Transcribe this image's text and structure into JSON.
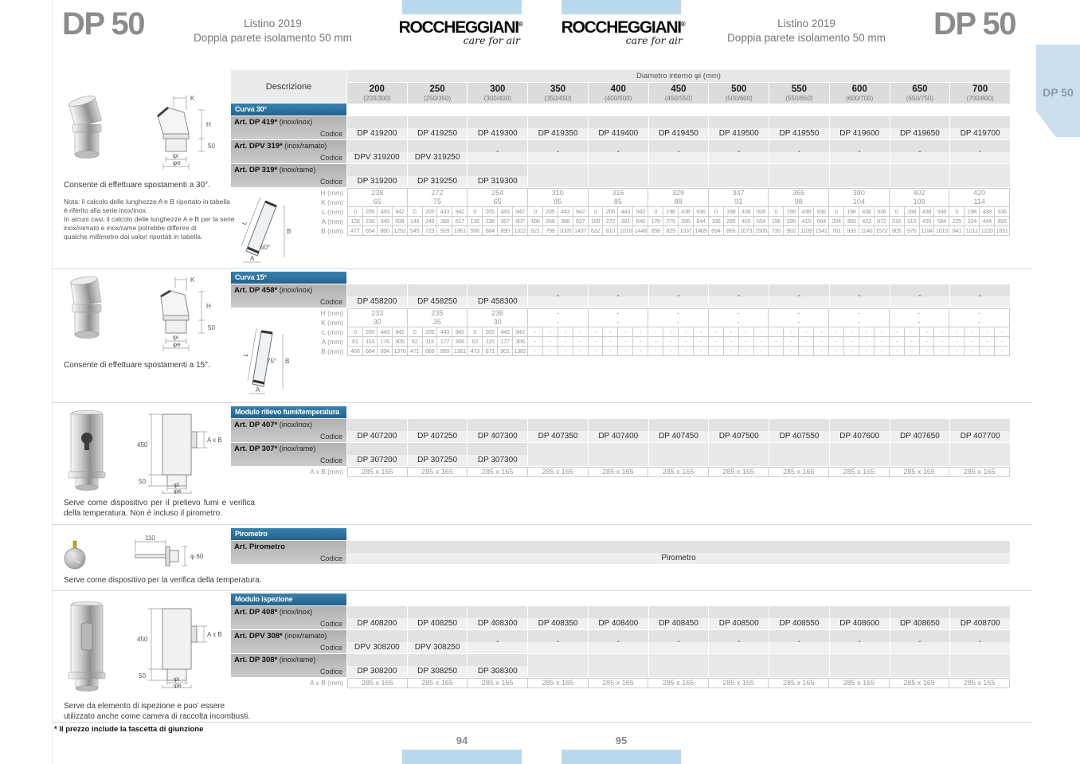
{
  "page": {
    "left_header": {
      "title": "DP 50",
      "line1": "Listino 2019",
      "line2": "Doppia parete isolamento 50 mm"
    },
    "right_header": {
      "title": "DP 50",
      "line1": "Listino 2019",
      "line2": "Doppia parete isolamento 50 mm"
    },
    "brand": {
      "name": "ROCCHEGGIANI",
      "registered": "®",
      "tagline": "care for air"
    },
    "side_tab": "DP 50",
    "footnote": "* Il prezzo include la fascetta di giunzione",
    "page_number_left": "94",
    "page_number_right": "95",
    "accent_blue": "#b9d8eb",
    "section_header_blue": "#2e76a5"
  },
  "table": {
    "descrizione_label": "Descrizione",
    "diametro_label": "Diametro interno φi (mm)",
    "codice_label": "Codice",
    "columns": [
      {
        "size": "200",
        "range": "(200/300)"
      },
      {
        "size": "250",
        "range": "(250/350)"
      },
      {
        "size": "300",
        "range": "(300/400)"
      },
      {
        "size": "350",
        "range": "(350/450)"
      },
      {
        "size": "400",
        "range": "(400/500)"
      },
      {
        "size": "450",
        "range": "(450/550)"
      },
      {
        "size": "500",
        "range": "(500/600)"
      },
      {
        "size": "550",
        "range": "(550/650)"
      },
      {
        "size": "600",
        "range": "(600/700)"
      },
      {
        "size": "650",
        "range": "(650/750)"
      },
      {
        "size": "700",
        "range": "(700/800)"
      }
    ],
    "sections": [
      {
        "id": "curva30",
        "title": "Curva 30°",
        "products": [
          {
            "name": "Art. DP 419*",
            "material": "(inox/inox)",
            "codes": [
              "DP 419200",
              "DP 419250",
              "DP 419300",
              "DP 419350",
              "DP 419400",
              "DP 419450",
              "DP 419500",
              "DP 419550",
              "DP 419600",
              "DP 419650",
              "DP 419700"
            ]
          },
          {
            "name": "Art. DPV 319*",
            "material": "(inox/ramato)",
            "codes": [
              "DPV 319200",
              "DPV 319250",
              "-",
              "-",
              "-",
              "-",
              "-",
              "-",
              "-",
              "-",
              "-"
            ]
          },
          {
            "name": "Art. DP 319*",
            "material": "(inox/rame)",
            "codes": [
              "DP 319200",
              "DP 319250",
              "DP 319300",
              "",
              "",
              "",
              "",
              "",
              "",
              "",
              ""
            ]
          }
        ],
        "dim_rows": [
          {
            "label": "H (mm)",
            "type": "single",
            "values": [
              "238",
              "272",
              "254",
              "310",
              "316",
              "329",
              "347",
              "365",
              "380",
              "402",
              "420"
            ]
          },
          {
            "label": "K (mm)",
            "type": "single",
            "values": [
              "65",
              "75",
              "65",
              "85",
              "85",
              "88",
              "93",
              "98",
              "104",
              "109",
              "114"
            ]
          },
          {
            "label": "L (mm)",
            "type": "quad",
            "values": [
              [
                "0",
                "205",
                "443",
                "942"
              ],
              [
                "0",
                "205",
                "443",
                "942"
              ],
              [
                "0",
                "205",
                "443",
                "942"
              ],
              [
                "0",
                "205",
                "443",
                "942"
              ],
              [
                "0",
                "205",
                "443",
                "942"
              ],
              [
                "0",
                "198",
                "438",
                "936"
              ],
              [
                "0",
                "198",
                "438",
                "936"
              ],
              [
                "0",
                "198",
                "438",
                "936"
              ],
              [
                "0",
                "198",
                "438",
                "936"
              ],
              [
                "0",
                "198",
                "438",
                "936"
              ],
              [
                "0",
                "198",
                "438",
                "936"
              ]
            ]
          },
          {
            "label": "A (mm)",
            "type": "quad",
            "values": [
              [
                "128",
                "230",
                "349",
                "599"
              ],
              [
                "146",
                "249",
                "368",
                "617"
              ],
              [
                "136",
                "238",
                "357",
                "607"
              ],
              [
                "166",
                "269",
                "388",
                "637"
              ],
              [
                "169",
                "272",
                "391",
                "640"
              ],
              [
                "176",
                "275",
                "395",
                "644"
              ],
              [
                "186",
                "285",
                "405",
                "654"
              ],
              [
                "196",
                "295",
                "415",
                "664"
              ],
              [
                "204",
                "303",
                "423",
                "672"
              ],
              [
                "216",
                "315",
                "435",
                "684"
              ],
              [
                "225",
                "324",
                "444",
                "693"
              ]
            ]
          },
          {
            "label": "B (mm)",
            "type": "quad",
            "values": [
              [
                "477",
                "654",
                "860",
                "1292"
              ],
              [
                "545",
                "723",
                "929",
                "1361"
              ],
              [
                "506",
                "684",
                "890",
                "1322"
              ],
              [
                "621",
                "799",
                "1005",
                "1437"
              ],
              [
                "632",
                "810",
                "1016",
                "1448"
              ],
              [
                "658",
                "829",
                "1037",
                "1469"
              ],
              [
                "694",
                "865",
                "1073",
                "1505"
              ],
              [
                "730",
                "902",
                "1109",
                "1541"
              ],
              [
                "761",
                "933",
                "1140",
                "1572"
              ],
              [
                "805",
                "976",
                "1184",
                "1615"
              ],
              [
                "841",
                "1012",
                "1220",
                "1651"
              ]
            ]
          }
        ]
      },
      {
        "id": "curva15",
        "title": "Curva 15°",
        "products": [
          {
            "name": "Art. DP 458*",
            "material": "(inox/inox)",
            "codes": [
              "DP 458200",
              "DP 458250",
              "DP 458300",
              "-",
              "-",
              "-",
              "-",
              "-",
              "-",
              "-",
              "-"
            ]
          }
        ],
        "dim_rows": [
          {
            "label": "H (mm)",
            "type": "single",
            "values": [
              "233",
              "235",
              "236",
              "-",
              "-",
              "-",
              "-",
              "-",
              "-",
              "-",
              "-"
            ]
          },
          {
            "label": "K (mm)",
            "type": "single",
            "values": [
              "30",
              "35",
              "30",
              "-",
              "-",
              "-",
              "-",
              "-",
              "-",
              "-",
              "-"
            ]
          },
          {
            "label": "L (mm)",
            "type": "quad",
            "values": [
              [
                "0",
                "205",
                "443",
                "942"
              ],
              [
                "0",
                "205",
                "443",
                "942"
              ],
              [
                "0",
                "205",
                "443",
                "942"
              ],
              [
                "-",
                "-",
                "-",
                "-"
              ],
              [
                "-",
                "-",
                "-",
                "-"
              ],
              [
                "-",
                "-",
                "-",
                "-"
              ],
              [
                "-",
                "-",
                "-",
                "-"
              ],
              [
                "-",
                "-",
                "-",
                "-"
              ],
              [
                "-",
                "-",
                "-",
                "-"
              ],
              [
                "-",
                "-",
                "-",
                "-"
              ],
              [
                "-",
                "-",
                "-",
                "-"
              ]
            ]
          },
          {
            "label": "A (mm)",
            "type": "quad",
            "values": [
              [
                "61",
                "114",
                "176",
                "305"
              ],
              [
                "62",
                "115",
                "177",
                "306"
              ],
              [
                "62",
                "115",
                "177",
                "306"
              ],
              [
                "-",
                "-",
                "-",
                "-"
              ],
              [
                "-",
                "-",
                "-",
                "-"
              ],
              [
                "-",
                "-",
                "-",
                "-"
              ],
              [
                "-",
                "-",
                "-",
                "-"
              ],
              [
                "-",
                "-",
                "-",
                "-"
              ],
              [
                "-",
                "-",
                "-",
                "-"
              ],
              [
                "-",
                "-",
                "-",
                "-"
              ],
              [
                "-",
                "-",
                "-",
                "-"
              ]
            ]
          },
          {
            "label": "B (mm)",
            "type": "quad",
            "values": [
              [
                "466",
                "664",
                "894",
                "1376"
              ],
              [
                "471",
                "669",
                "899",
                "1381"
              ],
              [
                "473",
                "671",
                "901",
                "1383"
              ],
              [
                "-",
                "-",
                "-",
                "-"
              ],
              [
                "-",
                "-",
                "-",
                "-"
              ],
              [
                "-",
                "-",
                "-",
                "-"
              ],
              [
                "-",
                "-",
                "-",
                "-"
              ],
              [
                "-",
                "-",
                "-",
                "-"
              ],
              [
                "-",
                "-",
                "-",
                "-"
              ],
              [
                "-",
                "-",
                "-",
                "-"
              ],
              [
                "-",
                "-",
                "-",
                "-"
              ]
            ]
          }
        ]
      },
      {
        "id": "rilievo",
        "title": "Modulo rilievo fumi/temperatura",
        "products": [
          {
            "name": "Art. DP 407*",
            "material": "(inox/inox)",
            "codes": [
              "DP 407200",
              "DP 407250",
              "DP 407300",
              "DP 407350",
              "DP 407400",
              "DP 407450",
              "DP 407500",
              "DP 407550",
              "DP 407600",
              "DP 407650",
              "DP 407700"
            ]
          },
          {
            "name": "Art. DP 307*",
            "material": "(inox/rame)",
            "codes": [
              "DP 307200",
              "DP 307250",
              "DP 307300",
              "",
              "",
              "",
              "",
              "",
              "",
              "",
              ""
            ]
          }
        ],
        "dim_rows": [
          {
            "label": "A x B (mm)",
            "type": "single",
            "values": [
              "285 x 165",
              "285 x 165",
              "285 x 165",
              "285 x 165",
              "285 x 165",
              "285 x 165",
              "285 x 165",
              "285 x 165",
              "285 x 165",
              "285 x 165",
              "285 x 165"
            ]
          }
        ]
      },
      {
        "id": "pirometro",
        "title": "Pirometro",
        "products": [
          {
            "name": "Art. Pirometro",
            "material": "",
            "span_value": "Pirometro"
          }
        ],
        "dim_rows": []
      },
      {
        "id": "ispezione",
        "title": "Modulo ispezione",
        "products": [
          {
            "name": "Art. DP 408*",
            "material": "(inox/inox)",
            "codes": [
              "DP 408200",
              "DP 408250",
              "DP 408300",
              "DP 408350",
              "DP 408400",
              "DP 408450",
              "DP 408500",
              "DP 408550",
              "DP 408600",
              "DP 408650",
              "DP 408700"
            ]
          },
          {
            "name": "Art. DPV 308*",
            "material": "(inox/ramato)",
            "codes": [
              "DPV 308200",
              "DPV 308250",
              "-",
              "-",
              "-",
              "-",
              "-",
              "-",
              "-",
              "-",
              "-"
            ]
          },
          {
            "name": "Art. DP 308*",
            "material": "(inox/rame)",
            "codes": [
              "DP 308200",
              "DP 308250",
              "DP 308300",
              "",
              "",
              "",
              "",
              "",
              "",
              "",
              ""
            ]
          }
        ],
        "dim_rows": [
          {
            "label": "A x B (mm)",
            "type": "single",
            "values": [
              "285 x 165",
              "285 x 165",
              "285 x 165",
              "285 x 165",
              "285 x 165",
              "285 x 165",
              "285 x 165",
              "285 x 165",
              "285 x 165",
              "285 x 165",
              "285 x 165"
            ]
          }
        ]
      }
    ]
  },
  "panels": [
    {
      "description": "Consente di effettuare spostamenti a 30°.",
      "note": "Nota: il calcolo delle lunghezze A e B riportato in tabella\nè riferito alla serie inox/inox.\nIn alcuni casi, il calcolo delle lunghezze A e B per la serie\ninox/ramato e inox/rame potrebbe differire di\nqualche millimetro dai valori riportati in tabella.",
      "labels": {
        "k": "K",
        "h": "H",
        "phi_i": "φi",
        "phi_e": "φe",
        "depth": "50"
      }
    },
    {
      "description": "Consente di effettuare spostamenti a 15°.",
      "labels": {
        "k": "K",
        "h": "H",
        "phi_i": "φi",
        "phi_e": "φe",
        "depth": "50"
      }
    },
    {
      "description": "Serve come dispositivo per il prelievo fumi e verifica della temperatura. Non è incluso il pirometro.",
      "labels": {
        "height": "450",
        "port": "A x B",
        "depth": "50",
        "phi_i": "φi",
        "phi_e": "φe"
      }
    },
    {
      "description": "Serve come dispositivo per la verifica della temperatura.",
      "labels": {
        "length": "110",
        "diameter": "φ 60"
      }
    },
    {
      "description": "Serve da elemento di ispezione e puo' essere utilizzato anche come camera di raccolta incombusti.",
      "labels": {
        "height": "450",
        "port": "A x B",
        "depth": "50",
        "phi_i": "φi",
        "phi_e": "φe"
      }
    }
  ],
  "diagrams": [
    {
      "l": "L",
      "b": "B",
      "a": "A",
      "angle": "60°"
    },
    {
      "l": "L",
      "b": "B",
      "a": "A",
      "angle": "75°"
    }
  ]
}
